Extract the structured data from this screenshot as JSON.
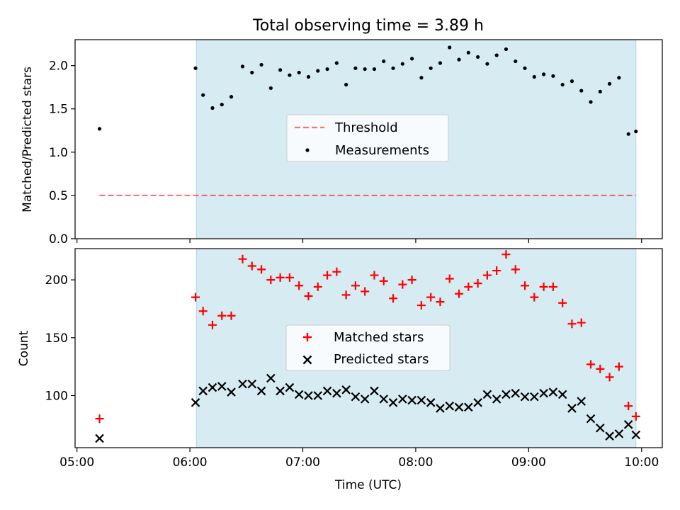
{
  "title": "Total observing time = 3.89 h",
  "chart_data": [
    {
      "type": "scatter",
      "panel": "top",
      "title": "Total observing time = 3.89 h",
      "ylabel": "Matched/Predicted stars",
      "xlabel": "",
      "x_unit": "minutes after 05:00 UTC",
      "xlim": [
        "04:59",
        "10:11"
      ],
      "ylim": [
        0,
        2.3
      ],
      "yticks": [
        "0.0",
        "0.5",
        "1.0",
        "1.5",
        "2.0"
      ],
      "shaded_interval": [
        "06:03.5",
        "09:57"
      ],
      "shade_color": "#add8e6",
      "legend_position": "center",
      "series": [
        {
          "name": "Threshold",
          "kind": "dashed-line",
          "color": "#ff0000",
          "x": [
            "05:12",
            "09:57"
          ],
          "y": [
            0.5,
            0.5
          ]
        },
        {
          "name": "Measurements",
          "kind": "points",
          "color": "#000000",
          "x": [
            "05:12",
            "06:03",
            "06:07",
            "06:12",
            "06:17",
            "06:22",
            "06:28",
            "06:33",
            "06:38",
            "06:43",
            "06:48",
            "06:53",
            "06:58",
            "07:03",
            "07:08",
            "07:13",
            "07:18",
            "07:23",
            "07:28",
            "07:33",
            "07:38",
            "07:43",
            "07:48",
            "07:53",
            "07:58",
            "08:03",
            "08:08",
            "08:13",
            "08:18",
            "08:23",
            "08:28",
            "08:33",
            "08:38",
            "08:43",
            "08:48",
            "08:53",
            "08:58",
            "09:03",
            "09:08",
            "09:13",
            "09:18",
            "09:23",
            "09:28",
            "09:33",
            "09:38",
            "09:43",
            "09:48",
            "09:53",
            "09:57"
          ],
          "y": [
            1.27,
            1.97,
            1.66,
            1.51,
            1.55,
            1.64,
            1.99,
            1.92,
            2.01,
            1.74,
            1.95,
            1.89,
            1.92,
            1.87,
            1.94,
            1.96,
            2.03,
            1.78,
            1.97,
            1.96,
            1.96,
            2.05,
            1.97,
            2.02,
            2.08,
            1.86,
            1.97,
            2.03,
            2.21,
            2.07,
            2.15,
            2.1,
            2.02,
            2.12,
            2.19,
            2.05,
            1.97,
            1.87,
            1.9,
            1.88,
            1.78,
            1.82,
            1.71,
            1.58,
            1.7,
            1.79,
            1.86,
            1.21,
            1.24
          ]
        }
      ]
    },
    {
      "type": "scatter",
      "panel": "bottom",
      "title": "",
      "xlabel": "Time (UTC)",
      "ylabel": "Count",
      "xlim": [
        "04:59",
        "10:11"
      ],
      "ylim": [
        55,
        227
      ],
      "xticks": [
        "05:00",
        "06:00",
        "07:00",
        "08:00",
        "09:00",
        "10:00"
      ],
      "yticks": [
        "100",
        "150",
        "200"
      ],
      "shaded_interval": [
        "06:03.5",
        "09:57"
      ],
      "shade_color": "#add8e6",
      "legend_position": "center",
      "series": [
        {
          "name": "Matched stars",
          "kind": "plus",
          "color": "#ff0000",
          "x": [
            "05:12",
            "06:03",
            "06:07",
            "06:12",
            "06:17",
            "06:22",
            "06:28",
            "06:33",
            "06:38",
            "06:43",
            "06:48",
            "06:53",
            "06:58",
            "07:03",
            "07:08",
            "07:13",
            "07:18",
            "07:23",
            "07:28",
            "07:33",
            "07:38",
            "07:43",
            "07:48",
            "07:53",
            "07:58",
            "08:03",
            "08:08",
            "08:13",
            "08:18",
            "08:23",
            "08:28",
            "08:33",
            "08:38",
            "08:43",
            "08:48",
            "08:53",
            "08:58",
            "09:03",
            "09:08",
            "09:13",
            "09:18",
            "09:23",
            "09:28",
            "09:33",
            "09:38",
            "09:43",
            "09:48",
            "09:53",
            "09:57"
          ],
          "y": [
            80,
            185,
            173,
            161,
            169,
            169,
            218,
            212,
            209,
            200,
            202,
            202,
            195,
            186,
            194,
            204,
            207,
            187,
            195,
            190,
            204,
            199,
            184,
            196,
            200,
            178,
            185,
            181,
            201,
            188,
            194,
            197,
            204,
            208,
            222,
            209,
            195,
            185,
            194,
            194,
            180,
            162,
            163,
            127,
            123,
            116,
            125,
            91,
            82
          ]
        },
        {
          "name": "Predicted stars",
          "kind": "cross",
          "color": "#000000",
          "x": [
            "05:12",
            "06:03",
            "06:07",
            "06:12",
            "06:17",
            "06:22",
            "06:28",
            "06:33",
            "06:38",
            "06:43",
            "06:48",
            "06:53",
            "06:58",
            "07:03",
            "07:08",
            "07:13",
            "07:18",
            "07:23",
            "07:28",
            "07:33",
            "07:38",
            "07:43",
            "07:48",
            "07:53",
            "07:58",
            "08:03",
            "08:08",
            "08:13",
            "08:18",
            "08:23",
            "08:28",
            "08:33",
            "08:38",
            "08:43",
            "08:48",
            "08:53",
            "08:58",
            "09:03",
            "09:08",
            "09:13",
            "09:18",
            "09:23",
            "09:28",
            "09:33",
            "09:38",
            "09:43",
            "09:48",
            "09:53",
            "09:57"
          ],
          "y": [
            63,
            94,
            104,
            107,
            108,
            103,
            110,
            110,
            104,
            115,
            104,
            107,
            101,
            100,
            100,
            104,
            102,
            105,
            99,
            97,
            104,
            97,
            94,
            97,
            96,
            96,
            94,
            89,
            91,
            90,
            90,
            94,
            101,
            97,
            101,
            102,
            99,
            99,
            102,
            103,
            101,
            89,
            95,
            80,
            72,
            65,
            67,
            75,
            66
          ]
        }
      ]
    }
  ]
}
